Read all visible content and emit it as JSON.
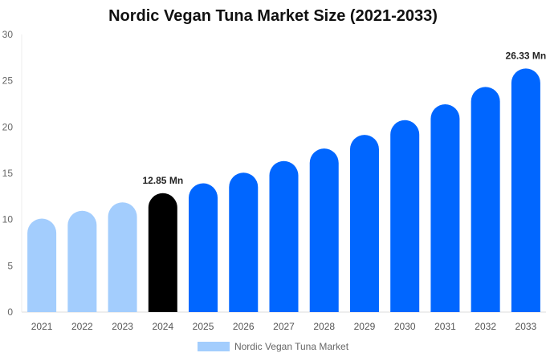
{
  "chart_data": {
    "type": "bar",
    "title": "Nordic Vegan Tuna Market Size (2021-2033)",
    "categories": [
      "2021",
      "2022",
      "2023",
      "2024",
      "2025",
      "2026",
      "2027",
      "2028",
      "2029",
      "2030",
      "2031",
      "2032",
      "2033"
    ],
    "series": [
      {
        "name": "Nordic Vegan Tuna Market",
        "values": [
          10.1,
          10.95,
          11.86,
          12.85,
          13.92,
          15.07,
          16.32,
          17.68,
          19.15,
          20.74,
          22.46,
          24.33,
          26.33
        ]
      }
    ],
    "ylim": [
      0,
      30
    ],
    "yticks": [
      0,
      5,
      10,
      15,
      20,
      25,
      30
    ],
    "annotations": [
      {
        "category": "2024",
        "label": "12.85 Mn"
      },
      {
        "category": "2033",
        "label": "26.33 Mn"
      }
    ],
    "colors": {
      "historical": "#a3cdfd",
      "base_year": "#000000",
      "forecast": "#0066ff"
    },
    "grid": false,
    "legend_position": "bottom"
  }
}
